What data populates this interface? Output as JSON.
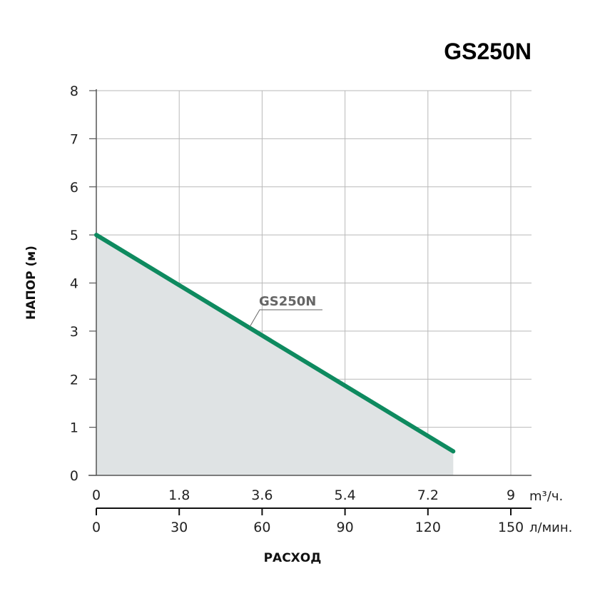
{
  "chart_data": {
    "type": "line",
    "title": "GS250N",
    "ylabel": "НАПОР (м)",
    "xlabel": "РАСХОД",
    "ylim": [
      0,
      8
    ],
    "y_ticks": [
      "0",
      "1",
      "2",
      "3",
      "4",
      "5",
      "6",
      "7",
      "8"
    ],
    "x_axis_primary": {
      "unit": "m³/ч.",
      "ticks": [
        "0",
        "1.8",
        "3.6",
        "5.4",
        "7.2",
        "9"
      ],
      "range": [
        0,
        9
      ]
    },
    "x_axis_secondary": {
      "unit": "л/мин.",
      "ticks": [
        "0",
        "30",
        "60",
        "90",
        "120",
        "150"
      ],
      "range": [
        0,
        150
      ]
    },
    "grid": true,
    "series": [
      {
        "name": "GS250N",
        "x": [
          0,
          7.75
        ],
        "y": [
          5.0,
          0.5
        ]
      }
    ],
    "fill_under_series": true,
    "colors": {
      "title": "#0e8a5f",
      "series_line": "#0e8a5f",
      "fill": "#dfe3e4",
      "grid": "#b9b9b9",
      "axis": "#555555",
      "series_label": "#666666"
    }
  }
}
